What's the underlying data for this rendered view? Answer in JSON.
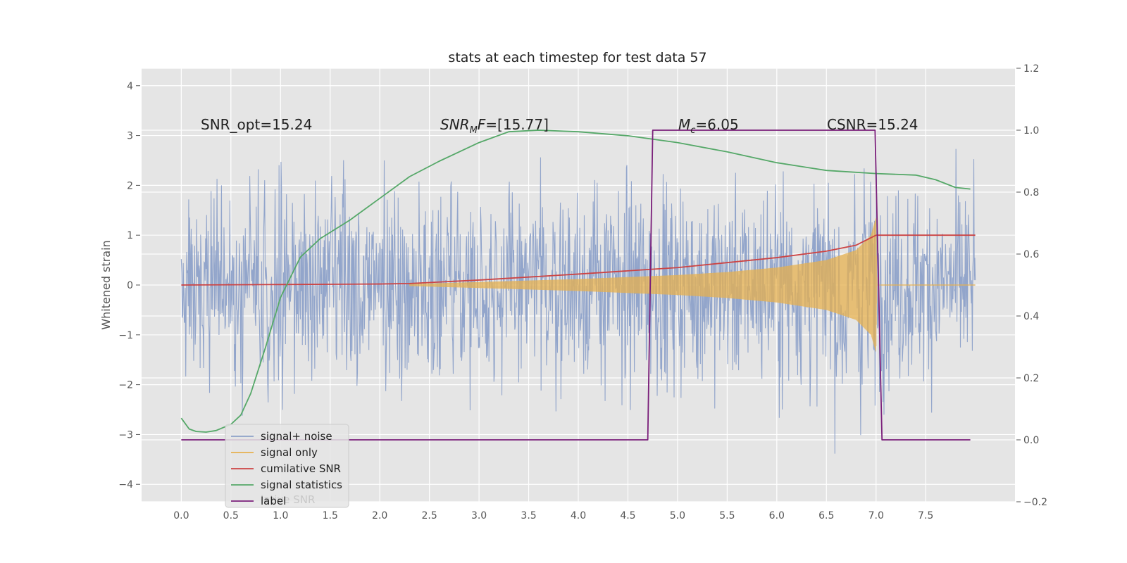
{
  "chart_data": {
    "type": "line",
    "title": "stats at each timestep for test data 57",
    "ylabel": "Whitened strain",
    "xlabel": "",
    "xlim": [
      -0.4,
      8.4
    ],
    "ylim": [
      -4.35,
      4.35
    ],
    "ylim_right": [
      -0.2,
      1.2
    ],
    "xticks": [
      "0.0",
      "0.5",
      "1.0",
      "1.5",
      "2.0",
      "2.5",
      "3.0",
      "3.5",
      "4.0",
      "4.5",
      "5.0",
      "5.5",
      "6.0",
      "6.5",
      "7.0",
      "7.5"
    ],
    "yticks_left": [
      "4",
      "3",
      "2",
      "1",
      "0",
      "−1",
      "−2",
      "−3",
      "−4"
    ],
    "yticks_right": [
      "1.2",
      "1.0",
      "0.8",
      "0.6",
      "0.4",
      "0.2",
      "0.0",
      "−0.2"
    ],
    "grid": true,
    "legend_position": "lower-left",
    "annotations": [
      {
        "label": "SNR_opt=15.24",
        "x": 0.2
      },
      {
        "label": "SNR_MF=[15.77]",
        "x": 2.6
      },
      {
        "label": "M_c=6.05",
        "x": 5.0
      },
      {
        "label": "CSNR=15.24",
        "x": 6.5
      }
    ],
    "series": [
      {
        "name": "signal+ noise",
        "color": "#8da1c9",
        "axis": "left",
        "description": "noisy whitened strain, amplitude roughly within -4 to 4, t from 0 to 8"
      },
      {
        "name": "signal only",
        "color": "#e6b04f",
        "axis": "left",
        "envelope_t": [
          2.3,
          3.0,
          4.0,
          5.0,
          5.5,
          6.0,
          6.5,
          6.8,
          6.95,
          7.0,
          7.01
        ],
        "envelope_amp": [
          0.02,
          0.06,
          0.12,
          0.2,
          0.26,
          0.35,
          0.5,
          0.7,
          1.0,
          1.35,
          0.0
        ]
      },
      {
        "name": "cumilative SNR",
        "color": "#cc4444",
        "axis": "left",
        "t": [
          0.0,
          1.0,
          2.0,
          2.3,
          3.0,
          4.0,
          5.0,
          6.0,
          6.5,
          6.8,
          7.0,
          7.01,
          8.0
        ],
        "y": [
          0.0,
          0.01,
          0.02,
          0.03,
          0.1,
          0.22,
          0.35,
          0.55,
          0.68,
          0.8,
          1.0,
          1.0,
          1.0
        ]
      },
      {
        "name": "signal statistics",
        "color": "#55a868",
        "axis": "right",
        "t": [
          0.0,
          0.08,
          0.15,
          0.25,
          0.35,
          0.5,
          0.6,
          0.7,
          0.85,
          1.0,
          1.2,
          1.4,
          1.7,
          2.0,
          2.3,
          2.6,
          3.0,
          3.3,
          3.6,
          4.0,
          4.5,
          5.0,
          5.5,
          6.0,
          6.5,
          7.0,
          7.4,
          7.6,
          7.8,
          7.95
        ],
        "y": [
          0.07,
          0.035,
          0.027,
          0.025,
          0.03,
          0.05,
          0.08,
          0.15,
          0.3,
          0.46,
          0.59,
          0.65,
          0.71,
          0.78,
          0.85,
          0.9,
          0.96,
          0.995,
          1.0,
          0.995,
          0.982,
          0.96,
          0.93,
          0.895,
          0.87,
          0.86,
          0.855,
          0.84,
          0.815,
          0.81
        ]
      },
      {
        "name": "label",
        "color": "#7a1f7a",
        "axis": "right",
        "t": [
          0.0,
          4.7,
          4.75,
          6.99,
          7.06,
          7.95
        ],
        "y": [
          0.0,
          0.0,
          1.0,
          1.0,
          0.0,
          0.0
        ]
      }
    ],
    "legend_bg_text": "lative SNR"
  }
}
